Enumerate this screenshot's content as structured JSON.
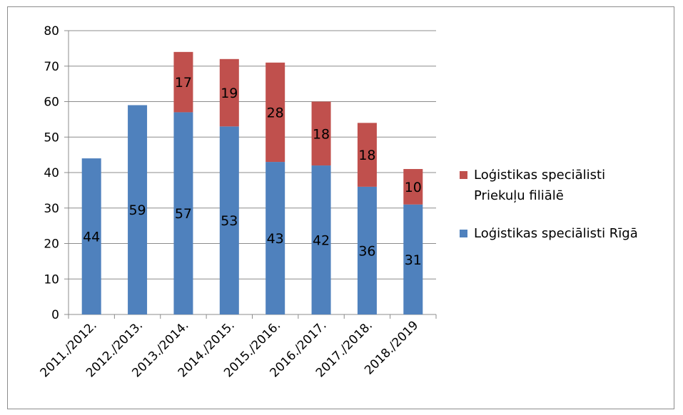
{
  "chart_data": {
    "type": "bar",
    "stacked": true,
    "categories": [
      "2011./2012.",
      "2012./2013.",
      "2013./2014.",
      "2014./2015.",
      "2015./2016.",
      "2016./2017.",
      "2017./2018.",
      "2018./2019"
    ],
    "series": [
      {
        "name": "Loģistikas speciālisti Rīgā",
        "values": [
          44,
          59,
          57,
          53,
          43,
          42,
          36,
          31
        ],
        "color": "#4f81bd"
      },
      {
        "name": "Loģistikas speciālisti Priekuļu filiālē",
        "values": [
          0,
          0,
          17,
          19,
          28,
          18,
          18,
          10
        ],
        "color": "#c0504d"
      }
    ],
    "ylim": [
      0,
      80
    ],
    "yticks": [
      0,
      10,
      20,
      30,
      40,
      50,
      60,
      70,
      80
    ],
    "grid": true,
    "legend_position": "right",
    "legend_lines": [
      [
        "Loģistikas speciālisti",
        "Priekuļu filiālē"
      ],
      [
        "Loģistikas speciālisti Rīgā"
      ]
    ]
  }
}
